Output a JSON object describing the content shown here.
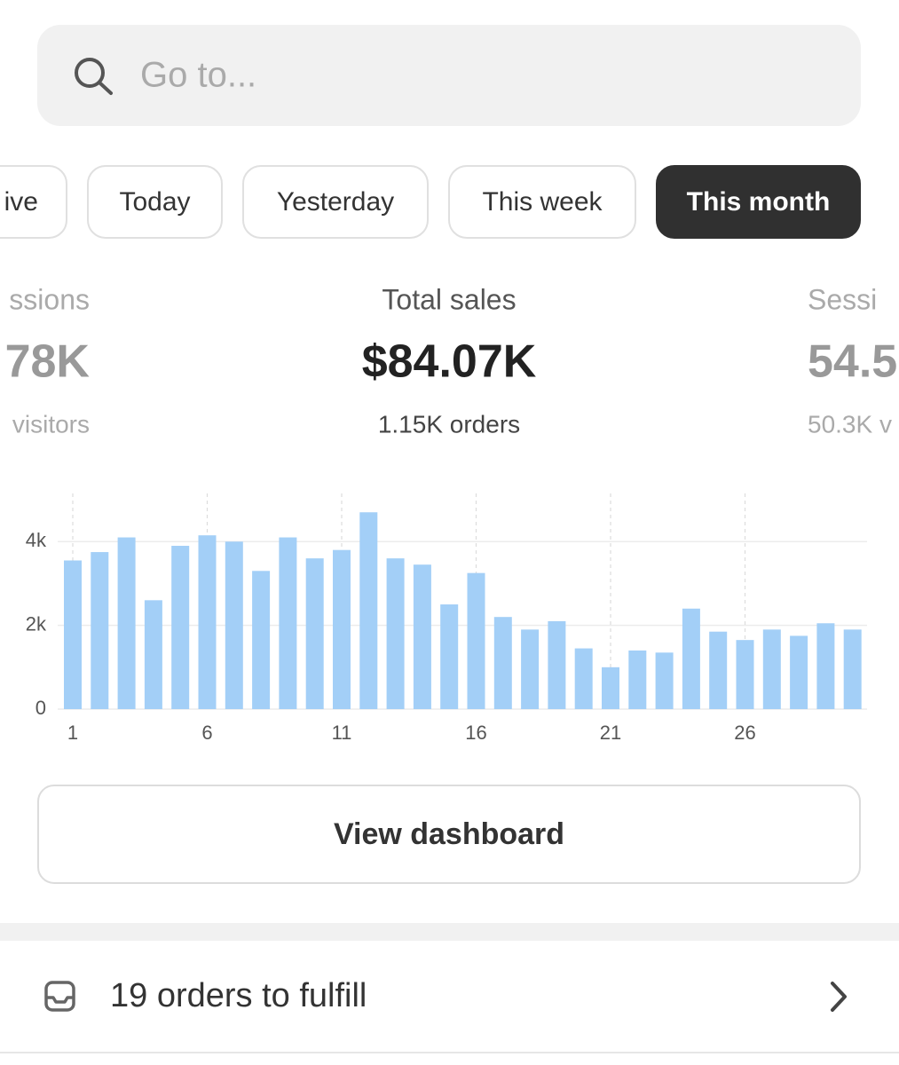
{
  "search": {
    "placeholder": "Go to..."
  },
  "date_filters": {
    "options": [
      "ive",
      "Today",
      "Yesterday",
      "This week",
      "This month"
    ],
    "selected": "This month"
  },
  "metrics": [
    {
      "label": "ssions",
      "value": "78K",
      "sub": "visitors"
    },
    {
      "label": "Total sales",
      "value": "$84.07K",
      "sub": "1.15K orders"
    },
    {
      "label": "Sessi",
      "value": "54.5",
      "sub": "50.3K v"
    }
  ],
  "chart_data": {
    "type": "bar",
    "categories": [
      "1",
      null,
      null,
      null,
      null,
      "6",
      null,
      null,
      null,
      null,
      "11",
      null,
      null,
      null,
      null,
      "16",
      null,
      null,
      null,
      null,
      "21",
      null,
      null,
      null,
      null,
      "26",
      null,
      null,
      null,
      null
    ],
    "values": [
      3.55,
      3.75,
      4.1,
      2.6,
      3.9,
      4.15,
      4.0,
      3.3,
      4.1,
      3.6,
      3.8,
      4.7,
      3.6,
      3.45,
      2.5,
      3.25,
      2.2,
      1.9,
      2.1,
      1.45,
      1.0,
      1.4,
      1.35,
      2.4,
      1.85,
      1.65,
      1.9,
      1.75,
      2.05,
      1.9
    ],
    "color": "#a3cff7",
    "ylim": [
      0,
      5.15
    ],
    "yticks": [
      0,
      {
        "value": 2,
        "label": "2k"
      },
      {
        "value": 4,
        "label": "4k"
      }
    ],
    "grid": true
  },
  "button": {
    "label": "View dashboard"
  },
  "tasks": [
    {
      "label": "19 orders to fulfill"
    }
  ]
}
